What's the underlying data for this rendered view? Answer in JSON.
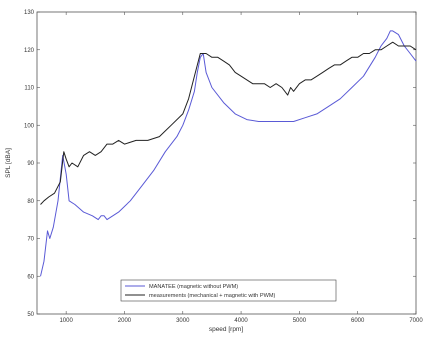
{
  "chart_data": {
    "type": "line",
    "xlabel": "speed [rpm]",
    "ylabel": "SPL [dBA]",
    "xlim": [
      500,
      7000
    ],
    "ylim": [
      50,
      130
    ],
    "xticks": [
      1000,
      2000,
      3000,
      4000,
      5000,
      6000,
      7000
    ],
    "yticks": [
      50,
      60,
      70,
      80,
      90,
      100,
      110,
      120,
      130
    ],
    "grid": false,
    "legend_position": "bottom-center",
    "series": [
      {
        "name": "MANATEE (magnetic without PWM)",
        "color": "#5a5ad6",
        "x": [
          560,
          620,
          680,
          720,
          780,
          860,
          940,
          1000,
          1050,
          1150,
          1300,
          1450,
          1550,
          1600,
          1650,
          1700,
          1800,
          1900,
          2100,
          2300,
          2500,
          2700,
          2900,
          3000,
          3100,
          3200,
          3250,
          3300,
          3350,
          3400,
          3500,
          3700,
          3900,
          4100,
          4300,
          4500,
          4700,
          4900,
          5100,
          5300,
          5500,
          5700,
          5900,
          6100,
          6300,
          6400,
          6500,
          6560,
          6600,
          6700,
          6800,
          6900,
          7000
        ],
        "y": [
          60,
          64,
          72,
          70,
          73,
          80,
          92,
          87,
          80,
          79,
          77,
          76,
          75,
          76,
          76,
          75,
          76,
          77,
          80,
          84,
          88,
          93,
          97,
          100,
          104,
          109,
          114,
          118,
          119,
          114,
          110,
          106,
          103,
          101.5,
          101,
          101,
          101,
          101,
          102,
          103,
          105,
          107,
          110,
          113,
          118,
          121,
          123,
          125,
          125,
          124,
          121,
          119,
          117
        ]
      },
      {
        "name": "measurements (mechanical + magnetic with PWM)",
        "color": "#222222",
        "x": [
          560,
          620,
          700,
          800,
          900,
          960,
          1000,
          1050,
          1100,
          1200,
          1300,
          1400,
          1500,
          1600,
          1700,
          1800,
          1900,
          2000,
          2200,
          2400,
          2600,
          2800,
          3000,
          3100,
          3200,
          3300,
          3400,
          3500,
          3600,
          3700,
          3800,
          3900,
          4000,
          4100,
          4200,
          4300,
          4400,
          4500,
          4600,
          4700,
          4800,
          4850,
          4900,
          5000,
          5100,
          5200,
          5300,
          5400,
          5500,
          5600,
          5700,
          5800,
          5900,
          6000,
          6100,
          6200,
          6300,
          6400,
          6500,
          6600,
          6700,
          6800,
          6900,
          7000
        ],
        "y": [
          79,
          80,
          81,
          82,
          85,
          93,
          91,
          89,
          90,
          89,
          92,
          93,
          92,
          93,
          95,
          95,
          96,
          95,
          96,
          96,
          97,
          100,
          103,
          107,
          113,
          119,
          119,
          118,
          118,
          117,
          116,
          114,
          113,
          112,
          111,
          111,
          111,
          110,
          111,
          110,
          108,
          110,
          109,
          111,
          112,
          112,
          113,
          114,
          115,
          116,
          116,
          117,
          118,
          118,
          119,
          119,
          120,
          120,
          121,
          122,
          121,
          121,
          121,
          120
        ]
      }
    ]
  }
}
